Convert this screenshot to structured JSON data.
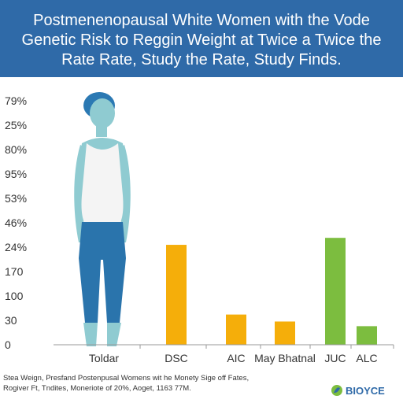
{
  "header": {
    "title": "Postmenenopausal White Women with the Vode Genetic Risk to Reggin Weight at Twice a Twice the Rate Rate, Study the Rate, Study Finds."
  },
  "footer": {
    "note_line1": "Stea Weign, Presfand Postenpusal Womens wit he Monety Sige off Fates,",
    "note_line2": "Rogiver Ft, Tndites, Moneriote of 20%, Aoget, 1163 77M."
  },
  "brand": {
    "name": "BIOYCE",
    "icon": "leaf-logo-icon"
  },
  "chart_data": {
    "type": "bar",
    "title": "",
    "xlabel": "",
    "ylabel": "",
    "y_tick_labels": [
      "79%",
      "25%",
      "80%",
      "95%",
      "53%",
      "46%",
      "24%",
      "170",
      "100",
      "30",
      "0"
    ],
    "categories": [
      "Toldar",
      "DSC",
      "AIC",
      "May Bhatnal",
      "JUC",
      "ALC"
    ],
    "values": [
      null,
      43,
      13,
      10,
      46,
      8
    ],
    "bar_colors": [
      null,
      "#f5ae0a",
      "#f5ae0a",
      "#f5ae0a",
      "#7cbd3f",
      "#7cbd3f"
    ],
    "ylim": [
      0,
      105
    ],
    "grid": false,
    "legend": "none",
    "illustration": "woman-figure-icon",
    "colors": {
      "skin": "#8fcbd1",
      "hair": "#2b79b3",
      "top": "#f4f4f4",
      "pants": "#2a74ac"
    }
  }
}
